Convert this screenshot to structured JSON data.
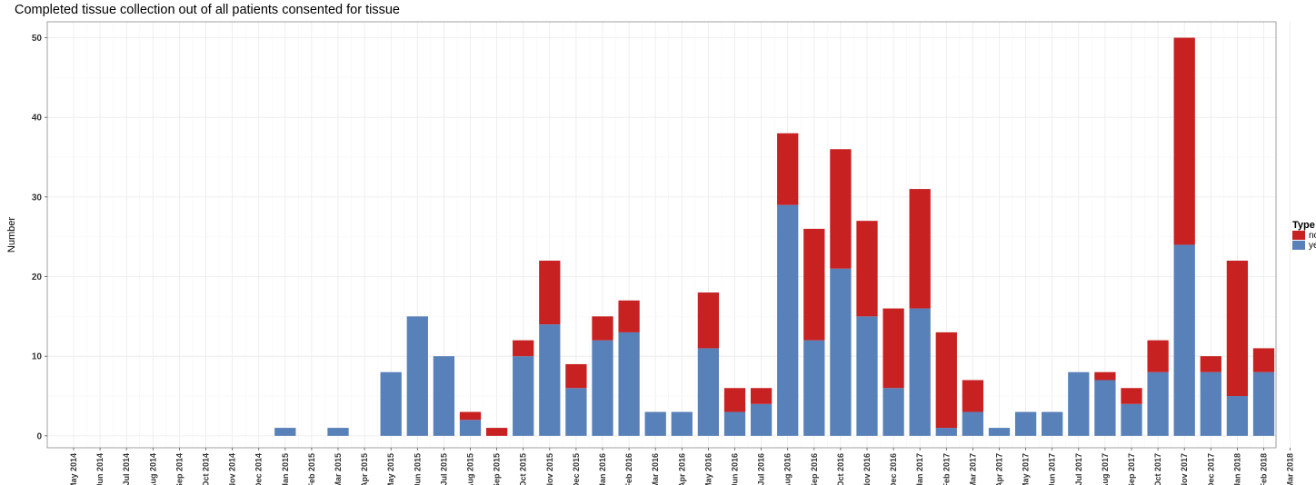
{
  "chart_data": {
    "type": "bar",
    "stacked": true,
    "title": "Completed tissue collection out of all patients consented for tissue",
    "xlabel": "",
    "ylabel": "Number",
    "ylim": [
      -1.5,
      52
    ],
    "yticks": [
      0,
      10,
      20,
      30,
      40,
      50
    ],
    "grid": true,
    "legend_position": "right",
    "legend_title": "Type",
    "categories": [
      "May 2014",
      "Jun 2014",
      "Jul 2014",
      "Aug 2014",
      "Sep 2014",
      "Oct 2014",
      "Nov 2014",
      "Dec 2014",
      "Jan 2015",
      "Feb 2015",
      "Mar 2015",
      "Apr 2015",
      "May 2015",
      "Jun 2015",
      "Jul 2015",
      "Aug 2015",
      "Sep 2015",
      "Oct 2015",
      "Nov 2015",
      "Dec 2015",
      "Jan 2016",
      "Feb 2016",
      "Mar 2016",
      "Apr 2016",
      "May 2016",
      "Jun 2016",
      "Jul 2016",
      "Aug 2016",
      "Sep 2016",
      "Oct 2016",
      "Nov 2016",
      "Dec 2016",
      "Jan 2017",
      "Feb 2017",
      "Mar 2017",
      "Apr 2017",
      "May 2017",
      "Jun 2017",
      "Jul 2017",
      "Aug 2017",
      "Sep 2017",
      "Oct 2017",
      "Nov 2017",
      "Dec 2017",
      "Jan 2018",
      "Feb 2018",
      "Mar 2018"
    ],
    "series": [
      {
        "name": "ye",
        "color": "#5880b9",
        "values": [
          0,
          0,
          0,
          0,
          0,
          0,
          0,
          0,
          1,
          0,
          1,
          0,
          8,
          15,
          10,
          2,
          0,
          10,
          14,
          6,
          12,
          13,
          3,
          3,
          11,
          3,
          4,
          29,
          12,
          21,
          15,
          6,
          16,
          1,
          3,
          1,
          3,
          3,
          8,
          7,
          4,
          8,
          24,
          8,
          5,
          8,
          0
        ]
      },
      {
        "name": "no",
        "color": "#c72122",
        "values": [
          0,
          0,
          0,
          0,
          0,
          0,
          0,
          0,
          0,
          0,
          0,
          0,
          0,
          0,
          0,
          1,
          1,
          2,
          8,
          3,
          3,
          4,
          0,
          0,
          7,
          3,
          2,
          9,
          14,
          15,
          12,
          10,
          15,
          12,
          4,
          0,
          0,
          0,
          0,
          1,
          2,
          4,
          26,
          2,
          17,
          3,
          0
        ]
      }
    ]
  }
}
